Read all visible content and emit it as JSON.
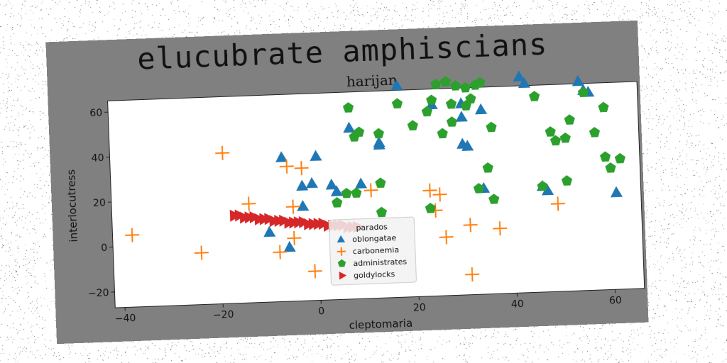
{
  "suptitle": "elucubrate amphiscians",
  "chart_data": {
    "type": "scatter",
    "title": "harijan",
    "xlabel": "cleptomaria",
    "ylabel": "interlocutress",
    "xlim": [
      -42,
      66
    ],
    "ylim": [
      -27,
      65
    ],
    "xticks": [
      -40,
      -20,
      0,
      20,
      40,
      60
    ],
    "yticks": [
      -20,
      0,
      20,
      40,
      60
    ],
    "grid": false,
    "legend": {
      "title": "parados",
      "placement": "lower-center",
      "entries": [
        "oblongatae",
        "carbonemia",
        "administrates",
        "goldylocks"
      ]
    },
    "series": [
      {
        "name": "oblongatae",
        "marker": "triangle",
        "color": "#1f77b4",
        "points": [
          [
            17,
            67
          ],
          [
            24,
            58
          ],
          [
            30,
            58
          ],
          [
            30,
            52
          ],
          [
            34,
            55
          ],
          [
            42,
            69
          ],
          [
            43,
            66
          ],
          [
            54,
            66
          ],
          [
            55,
            62
          ],
          [
            56,
            61
          ],
          [
            7,
            49
          ],
          [
            13,
            42
          ],
          [
            -7,
            37
          ],
          [
            0,
            37
          ],
          [
            -3,
            24
          ],
          [
            -1,
            25
          ],
          [
            3,
            24
          ],
          [
            4,
            21
          ],
          [
            9,
            24
          ],
          [
            13,
            41
          ],
          [
            30,
            40
          ],
          [
            31,
            39
          ],
          [
            34,
            20
          ],
          [
            46,
            20
          ],
          [
            47,
            18
          ],
          [
            61,
            16
          ],
          [
            -10,
            4
          ],
          [
            -6,
            -3
          ],
          [
            -3,
            15
          ]
        ]
      },
      {
        "name": "carbonemia",
        "marker": "plus",
        "color": "#ff7f0e",
        "points": [
          [
            -38,
            5
          ],
          [
            -24,
            -4
          ],
          [
            -19,
            40
          ],
          [
            -14,
            17
          ],
          [
            -6,
            33
          ],
          [
            -3,
            32
          ],
          [
            -5,
            15
          ],
          [
            -5,
            1
          ],
          [
            -1,
            -14
          ],
          [
            11,
            21
          ],
          [
            23,
            20
          ],
          [
            24,
            11
          ],
          [
            25,
            18
          ],
          [
            26,
            -1
          ],
          [
            31,
            4
          ],
          [
            31,
            -18
          ],
          [
            37,
            2
          ],
          [
            49,
            12
          ],
          [
            -8,
            -5
          ]
        ]
      },
      {
        "name": "administrates",
        "marker": "pentagon",
        "color": "#2ca02c",
        "points": [
          [
            7,
            58
          ],
          [
            8,
            45
          ],
          [
            9,
            47
          ],
          [
            13,
            46
          ],
          [
            17,
            59
          ],
          [
            20,
            49
          ],
          [
            23,
            55
          ],
          [
            24,
            60
          ],
          [
            25,
            67
          ],
          [
            27,
            68
          ],
          [
            29,
            66
          ],
          [
            31,
            65
          ],
          [
            33,
            66
          ],
          [
            34,
            67
          ],
          [
            28,
            58
          ],
          [
            31,
            57
          ],
          [
            28,
            50
          ],
          [
            26,
            45
          ],
          [
            32,
            60
          ],
          [
            36,
            47
          ],
          [
            45,
            60
          ],
          [
            48,
            44
          ],
          [
            49,
            40
          ],
          [
            51,
            41
          ],
          [
            52,
            49
          ],
          [
            55,
            61
          ],
          [
            57,
            43
          ],
          [
            59,
            54
          ],
          [
            59,
            32
          ],
          [
            60,
            27
          ],
          [
            62,
            31
          ],
          [
            51,
            22
          ],
          [
            46,
            20
          ],
          [
            35,
            29
          ],
          [
            36,
            15
          ],
          [
            33,
            20
          ],
          [
            4,
            16
          ],
          [
            6,
            20
          ],
          [
            8,
            20
          ],
          [
            13,
            24
          ],
          [
            13,
            11
          ],
          [
            23,
            12
          ]
        ]
      },
      {
        "name": "goldylocks",
        "marker": "triangle-right",
        "color": "#d62728",
        "points": [
          [
            -17,
            12
          ],
          [
            -16,
            12
          ],
          [
            -15,
            11
          ],
          [
            -14,
            11
          ],
          [
            -13,
            11
          ],
          [
            -12,
            10
          ],
          [
            -11,
            10
          ],
          [
            -10,
            10
          ],
          [
            -9,
            9
          ],
          [
            -8,
            9
          ],
          [
            -7,
            9
          ],
          [
            -6,
            8
          ],
          [
            -5,
            8
          ],
          [
            -4,
            8
          ],
          [
            -3,
            8
          ],
          [
            -2,
            7
          ],
          [
            -1,
            7
          ],
          [
            0,
            7
          ],
          [
            1,
            7
          ],
          [
            2,
            6
          ],
          [
            3,
            6
          ],
          [
            4,
            6
          ],
          [
            5,
            6
          ],
          [
            6,
            5
          ],
          [
            7,
            5
          ],
          [
            8,
            5
          ]
        ]
      }
    ]
  }
}
